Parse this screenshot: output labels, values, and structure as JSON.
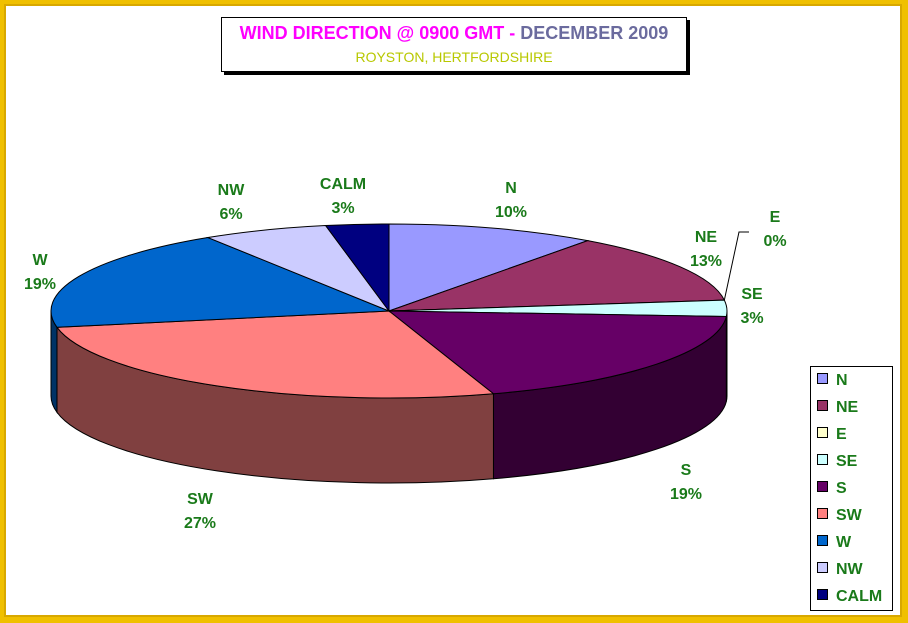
{
  "title": {
    "part1": "WIND DIRECTION @ 0900 GMT - ",
    "part2": "DECEMBER 2009",
    "subtitle": "ROYSTON, HERTFORDSHIRE"
  },
  "chart_data": {
    "type": "pie",
    "title": "WIND DIRECTION @ 0900 GMT - DECEMBER 2009",
    "subtitle": "ROYSTON, HERTFORDSHIRE",
    "style": "3d",
    "legend": "right",
    "slices": [
      {
        "label": "N",
        "value": 10,
        "value_label": "10%",
        "color": "#9999ff"
      },
      {
        "label": "NE",
        "value": 13,
        "value_label": "13%",
        "color": "#993366"
      },
      {
        "label": "E",
        "value": 0,
        "value_label": "0%",
        "color": "#ffffcc"
      },
      {
        "label": "SE",
        "value": 3,
        "value_label": "3%",
        "color": "#ccffff"
      },
      {
        "label": "S",
        "value": 19,
        "value_label": "19%",
        "color": "#660066"
      },
      {
        "label": "SW",
        "value": 27,
        "value_label": "27%",
        "color": "#ff8080"
      },
      {
        "label": "W",
        "value": 19,
        "value_label": "19%",
        "color": "#0066cc"
      },
      {
        "label": "NW",
        "value": 6,
        "value_label": "6%",
        "color": "#ccccff"
      },
      {
        "label": "CALM",
        "value": 3,
        "value_label": "3%",
        "color": "#000080"
      }
    ]
  }
}
